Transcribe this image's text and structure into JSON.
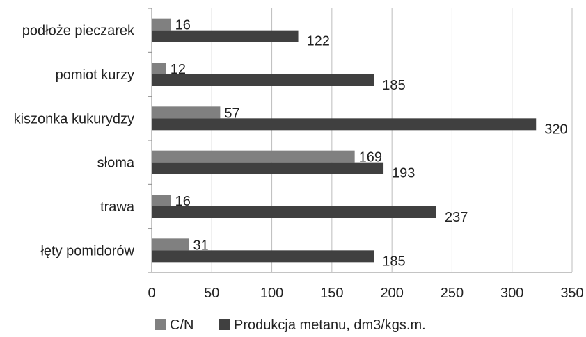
{
  "chart_data": {
    "type": "bar",
    "orientation": "horizontal",
    "categories": [
      "podłoże pieczarek",
      "pomiot kurzy",
      "kiszonka kukurydzy",
      "słoma",
      "trawa",
      "łęty pomidorów"
    ],
    "series": [
      {
        "name": "C/N",
        "values": [
          16,
          12,
          57,
          169,
          16,
          31
        ],
        "color": "#808080"
      },
      {
        "name": "Produkcja metanu, dm3/kgs.m.",
        "values": [
          122,
          185,
          320,
          193,
          237,
          185
        ],
        "color": "#404040"
      }
    ],
    "xlim": [
      0,
      350
    ],
    "xticks": [
      "0",
      "50",
      "100",
      "150",
      "200",
      "250",
      "300",
      "350"
    ],
    "grid": true,
    "legend_position": "bottom",
    "data_labels": true
  }
}
